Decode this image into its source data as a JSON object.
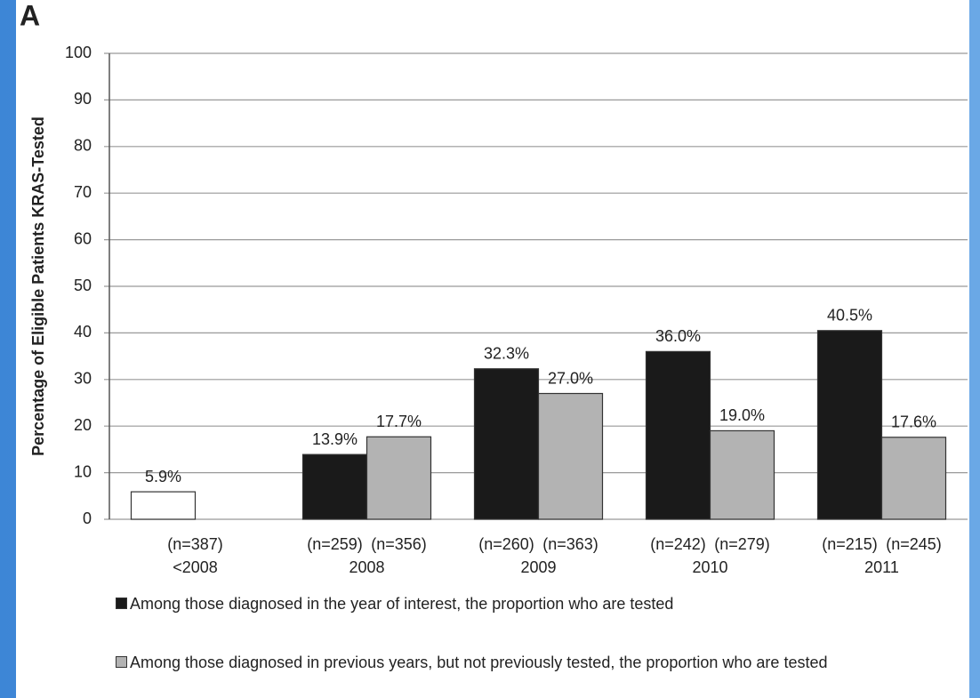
{
  "chart_data": {
    "type": "bar",
    "title": "A",
    "y_label": "Percentage of Eligible Patients KRAS-Tested",
    "categories": [
      "<2008",
      "2008",
      "2009",
      "2010",
      "2011"
    ],
    "series": [
      {
        "name": "Among those diagnosed in the year of interest, the proportion who are tested",
        "color": "#1a1a1a",
        "colors": [
          "#ffffff",
          "#1a1a1a",
          "#1a1a1a",
          "#1a1a1a",
          "#1a1a1a"
        ],
        "values": [
          5.9,
          13.9,
          32.3,
          36.0,
          40.5
        ],
        "value_labels": [
          "5.9%",
          "13.9%",
          "32.3%",
          "36.0%",
          "40.5%"
        ],
        "n_labels": [
          "(n=387)",
          "(n=259)",
          "(n=260)",
          "(n=242)",
          "(n=215)"
        ]
      },
      {
        "name": "Among those diagnosed in previous years, but not previously tested, the proportion who are tested",
        "color": "#b3b3b3",
        "values": [
          null,
          17.7,
          27.0,
          19.0,
          17.6
        ],
        "value_labels": [
          null,
          "17.7%",
          "27.0%",
          "19.0%",
          "17.6%"
        ],
        "n_labels": [
          null,
          "(n=356)",
          "(n=363)",
          "(n=279)",
          "(n=245)"
        ]
      }
    ],
    "ylim": [
      0,
      100
    ],
    "yticks": [
      0,
      10,
      20,
      30,
      40,
      50,
      60,
      70,
      80,
      90,
      100
    ],
    "grid": true
  }
}
